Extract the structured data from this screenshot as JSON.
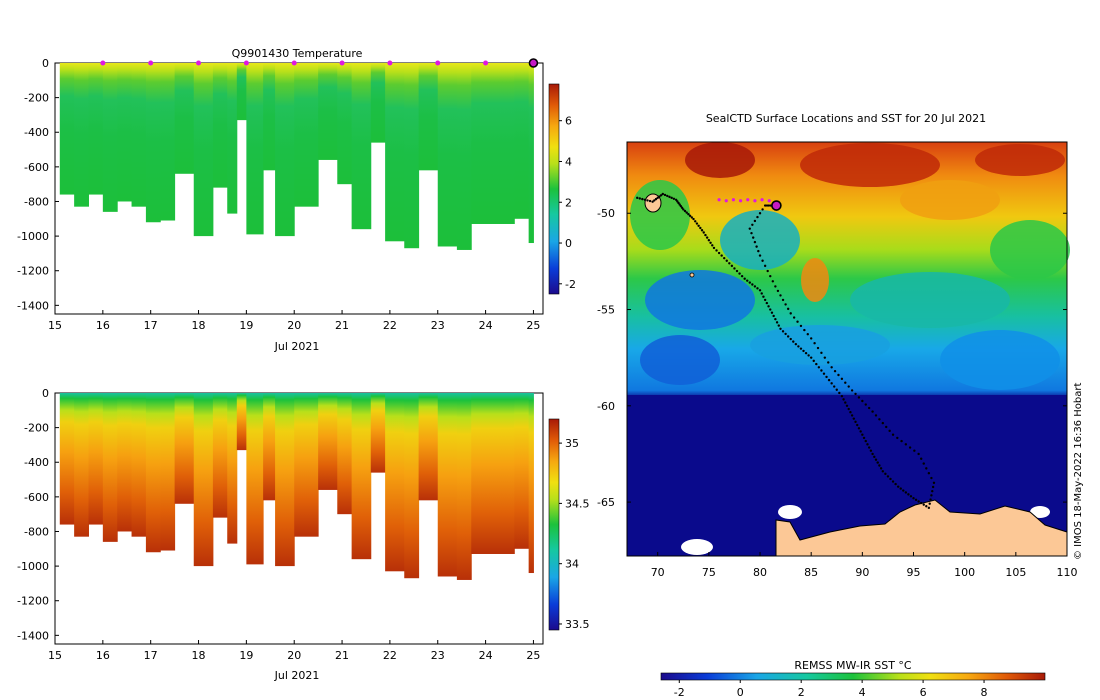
{
  "chart_data": [
    {
      "type": "heatmap",
      "title": "Q9901430  Temperature",
      "xlabel": "Jul 2021",
      "x_ticks": [
        15,
        16,
        17,
        18,
        19,
        20,
        21,
        22,
        23,
        24,
        25
      ],
      "xlim": [
        15,
        25.2
      ],
      "y_ticks": [
        0,
        -200,
        -400,
        -600,
        -800,
        -1000,
        -1200,
        -1400
      ],
      "ylim": [
        -1450,
        0
      ],
      "colorbar_ticks": [
        -2,
        0,
        2,
        4,
        6
      ],
      "colorbar_range": [
        -2.5,
        7.8
      ],
      "profile_markers": [
        16,
        17,
        18,
        19,
        20,
        21,
        22,
        23,
        24
      ],
      "current_position_marker": 25,
      "profiles": [
        {
          "t": 15.1,
          "depth": 760
        },
        {
          "t": 15.4,
          "depth": 830
        },
        {
          "t": 15.7,
          "depth": 760
        },
        {
          "t": 16.0,
          "depth": 860
        },
        {
          "t": 16.3,
          "depth": 800
        },
        {
          "t": 16.6,
          "depth": 830
        },
        {
          "t": 16.9,
          "depth": 920
        },
        {
          "t": 17.2,
          "depth": 910
        },
        {
          "t": 17.5,
          "depth": 640
        },
        {
          "t": 17.9,
          "depth": 1000
        },
        {
          "t": 18.3,
          "depth": 720
        },
        {
          "t": 18.6,
          "depth": 870
        },
        {
          "t": 18.8,
          "depth": 330
        },
        {
          "t": 19.0,
          "depth": 990
        },
        {
          "t": 19.35,
          "depth": 620
        },
        {
          "t": 19.6,
          "depth": 1000
        },
        {
          "t": 20.0,
          "depth": 830
        },
        {
          "t": 20.5,
          "depth": 560
        },
        {
          "t": 20.9,
          "depth": 700
        },
        {
          "t": 21.2,
          "depth": 960
        },
        {
          "t": 21.6,
          "depth": 460
        },
        {
          "t": 21.9,
          "depth": 1030
        },
        {
          "t": 22.3,
          "depth": 1070
        },
        {
          "t": 22.6,
          "depth": 620
        },
        {
          "t": 23.0,
          "depth": 1060
        },
        {
          "t": 23.4,
          "depth": 1080
        },
        {
          "t": 23.7,
          "depth": 930
        },
        {
          "t": 24.2,
          "depth": 930
        },
        {
          "t": 24.6,
          "depth": 900
        },
        {
          "t": 24.9,
          "depth": 1040
        }
      ]
    },
    {
      "type": "heatmap",
      "title": "",
      "xlabel": "Jul 2021",
      "x_ticks": [
        15,
        16,
        17,
        18,
        19,
        20,
        21,
        22,
        23,
        24,
        25
      ],
      "xlim": [
        15,
        25.2
      ],
      "y_ticks": [
        0,
        -200,
        -400,
        -600,
        -800,
        -1000,
        -1200,
        -1400
      ],
      "ylim": [
        -1450,
        0
      ],
      "colorbar_ticks": [
        33.5,
        34,
        34.5,
        35
      ],
      "colorbar_range": [
        33.45,
        35.2
      ]
    },
    {
      "type": "heatmap",
      "title": "SealCTD Surface Locations and SST for 20 Jul 2021",
      "x_ticks": [
        70,
        75,
        80,
        85,
        90,
        95,
        100,
        105,
        110
      ],
      "xlim": [
        67,
        110
      ],
      "y_ticks": [
        -50,
        -55,
        -60,
        -65
      ],
      "ylim": [
        -67.8,
        -46.3
      ],
      "colorbar_label": "REMSS MW-IR SST °C",
      "colorbar_ticks": [
        -2,
        0,
        2,
        4,
        6,
        8
      ],
      "colorbar_range": [
        -2.6,
        10
      ],
      "current_position": {
        "lon": 81.6,
        "lat": -49.6
      },
      "track": [
        [
          68.0,
          -49.2
        ],
        [
          69.5,
          -49.4
        ],
        [
          70.5,
          -49.0
        ],
        [
          71.8,
          -49.3
        ],
        [
          72.5,
          -49.8
        ],
        [
          73.5,
          -50.3
        ],
        [
          74.5,
          -51.0
        ],
        [
          75.5,
          -51.8
        ],
        [
          77.0,
          -52.6
        ],
        [
          78.5,
          -53.4
        ],
        [
          80.0,
          -54.0
        ],
        [
          81.0,
          -55.0
        ],
        [
          82.0,
          -56.0
        ],
        [
          83.5,
          -56.8
        ],
        [
          85.0,
          -57.5
        ],
        [
          86.5,
          -58.5
        ],
        [
          88.0,
          -59.5
        ],
        [
          89.0,
          -60.5
        ],
        [
          90.0,
          -61.5
        ],
        [
          91.0,
          -62.5
        ],
        [
          92.0,
          -63.4
        ],
        [
          93.5,
          -64.2
        ],
        [
          95.0,
          -64.8
        ],
        [
          96.5,
          -65.3
        ],
        [
          97.0,
          -64.0
        ],
        [
          95.5,
          -62.5
        ],
        [
          93.0,
          -61.5
        ],
        [
          91.0,
          -60.3
        ],
        [
          89.0,
          -59.2
        ],
        [
          87.0,
          -58.0
        ],
        [
          85.0,
          -56.5
        ],
        [
          83.0,
          -55.2
        ],
        [
          81.5,
          -53.8
        ],
        [
          80.0,
          -52.2
        ],
        [
          79.0,
          -50.8
        ],
        [
          80.5,
          -49.6
        ],
        [
          81.6,
          -49.6
        ]
      ]
    }
  ],
  "watermark": "© IMOS 18-May-2022 16:36 Hobart"
}
